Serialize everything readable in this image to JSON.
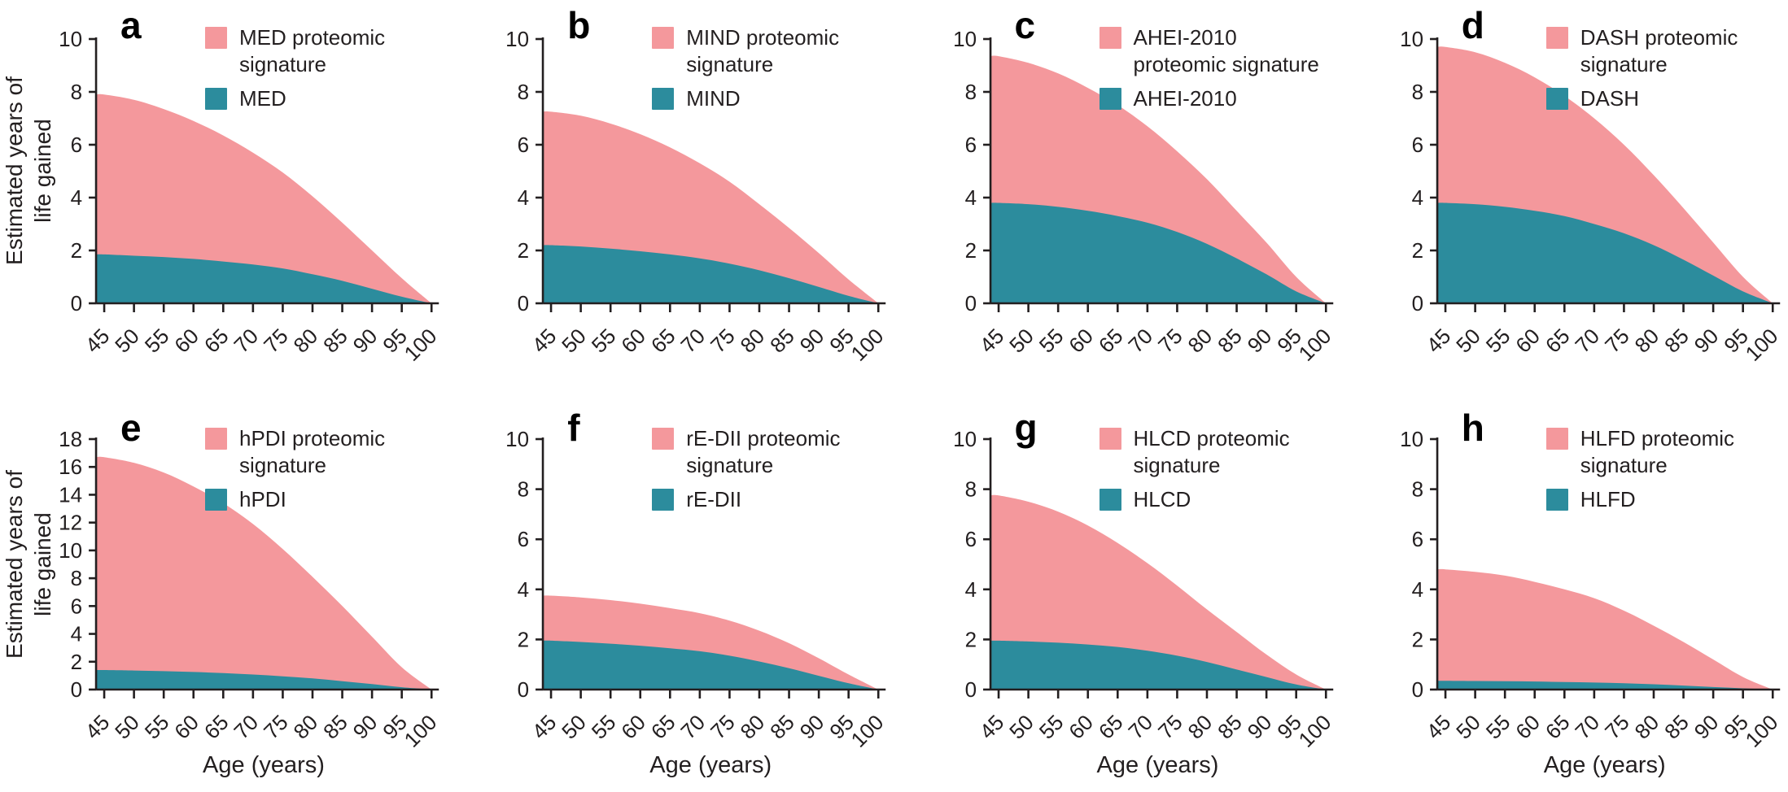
{
  "figure_name": "estimated-years-of-life-gained-by-diet",
  "chart_data": {
    "type": "area",
    "x_axis_label": "Age (years)",
    "y_axis_label_lines": [
      "Estimated years of",
      "life gained"
    ],
    "x": [
      45,
      50,
      55,
      60,
      65,
      70,
      75,
      80,
      85,
      90,
      95,
      100
    ],
    "x_tick_labels": [
      "45",
      "50",
      "55",
      "60",
      "65",
      "70",
      "75",
      "80",
      "85",
      "90",
      "95",
      "100"
    ],
    "grid": false,
    "legend_position": "top-right",
    "colors": {
      "signature": "#F4989C",
      "diet": "#2C8C9D",
      "axis": "#231F20",
      "background": "#FFFFFF"
    },
    "panels": [
      {
        "letter": "a",
        "show_ylabel": true,
        "show_xlabel": false,
        "ylim": [
          0,
          10
        ],
        "yticks": [
          0,
          2,
          4,
          6,
          8,
          10
        ],
        "legend": [
          {
            "lines": [
              "MED proteomic",
              "signature"
            ],
            "color_key": "signature"
          },
          {
            "lines": [
              "MED"
            ],
            "color_key": "diet"
          }
        ],
        "series": [
          {
            "name": "MED proteomic signature",
            "color_key": "signature",
            "values": [
              7.9,
              7.7,
              7.35,
              6.9,
              6.35,
              5.7,
              4.95,
              4.05,
              3.05,
              2.0,
              0.95,
              0
            ]
          },
          {
            "name": "MED",
            "color_key": "diet",
            "values": [
              1.85,
              1.8,
              1.75,
              1.68,
              1.58,
              1.47,
              1.32,
              1.1,
              0.85,
              0.55,
              0.25,
              0
            ]
          }
        ]
      },
      {
        "letter": "b",
        "show_ylabel": false,
        "show_xlabel": false,
        "ylim": [
          0,
          10
        ],
        "yticks": [
          0,
          2,
          4,
          6,
          8,
          10
        ],
        "legend": [
          {
            "lines": [
              "MIND proteomic",
              "signature"
            ],
            "color_key": "signature"
          },
          {
            "lines": [
              "MIND"
            ],
            "color_key": "diet"
          }
        ],
        "series": [
          {
            "name": "MIND proteomic signature",
            "color_key": "signature",
            "values": [
              7.25,
              7.1,
              6.8,
              6.4,
              5.9,
              5.3,
              4.6,
              3.75,
              2.85,
              1.9,
              0.9,
              0
            ]
          },
          {
            "name": "MIND",
            "color_key": "diet",
            "values": [
              2.2,
              2.15,
              2.07,
              1.97,
              1.85,
              1.7,
              1.5,
              1.25,
              0.95,
              0.62,
              0.28,
              0
            ]
          }
        ]
      },
      {
        "letter": "c",
        "show_ylabel": false,
        "show_xlabel": false,
        "ylim": [
          0,
          10
        ],
        "yticks": [
          0,
          2,
          4,
          6,
          8,
          10
        ],
        "legend": [
          {
            "lines": [
              "AHEI-2010",
              "proteomic signature"
            ],
            "color_key": "signature"
          },
          {
            "lines": [
              "AHEI-2010"
            ],
            "color_key": "diet"
          }
        ],
        "series": [
          {
            "name": "AHEI-2010 proteomic signature",
            "color_key": "signature",
            "values": [
              9.35,
              9.1,
              8.7,
              8.15,
              7.5,
              6.7,
              5.75,
              4.7,
              3.5,
              2.3,
              1.0,
              0
            ]
          },
          {
            "name": "AHEI-2010",
            "color_key": "diet",
            "values": [
              3.8,
              3.75,
              3.65,
              3.5,
              3.3,
              3.05,
              2.7,
              2.25,
              1.7,
              1.1,
              0.45,
              0
            ]
          }
        ]
      },
      {
        "letter": "d",
        "show_ylabel": false,
        "show_xlabel": false,
        "ylim": [
          0,
          10
        ],
        "yticks": [
          0,
          2,
          4,
          6,
          8,
          10
        ],
        "legend": [
          {
            "lines": [
              "DASH proteomic",
              "signature"
            ],
            "color_key": "signature"
          },
          {
            "lines": [
              "DASH"
            ],
            "color_key": "diet"
          }
        ],
        "series": [
          {
            "name": "DASH proteomic signature",
            "color_key": "signature",
            "values": [
              9.7,
              9.5,
              9.1,
              8.55,
              7.85,
              7.0,
              6.0,
              4.85,
              3.6,
              2.3,
              1.0,
              0
            ]
          },
          {
            "name": "DASH",
            "color_key": "diet",
            "values": [
              3.8,
              3.75,
              3.65,
              3.5,
              3.3,
              3.0,
              2.65,
              2.2,
              1.65,
              1.05,
              0.45,
              0
            ]
          }
        ]
      },
      {
        "letter": "e",
        "show_ylabel": true,
        "show_xlabel": true,
        "ylim": [
          0,
          18
        ],
        "yticks": [
          0,
          2,
          4,
          6,
          8,
          10,
          12,
          14,
          16,
          18
        ],
        "legend": [
          {
            "lines": [
              "hPDI proteomic",
              "signature"
            ],
            "color_key": "signature"
          },
          {
            "lines": [
              "hPDI"
            ],
            "color_key": "diet"
          }
        ],
        "series": [
          {
            "name": "hPDI proteomic signature",
            "color_key": "signature",
            "values": [
              16.7,
              16.3,
              15.6,
              14.6,
              13.4,
              11.9,
              10.1,
              8.1,
              6.0,
              3.8,
              1.6,
              0
            ]
          },
          {
            "name": "hPDI",
            "color_key": "diet",
            "values": [
              1.4,
              1.37,
              1.32,
              1.26,
              1.18,
              1.08,
              0.95,
              0.8,
              0.6,
              0.4,
              0.17,
              0
            ]
          }
        ]
      },
      {
        "letter": "f",
        "show_ylabel": false,
        "show_xlabel": true,
        "ylim": [
          0,
          10
        ],
        "yticks": [
          0,
          2,
          4,
          6,
          8,
          10
        ],
        "legend": [
          {
            "lines": [
              "rE-DII proteomic",
              "signature"
            ],
            "color_key": "signature"
          },
          {
            "lines": [
              "rE-DII"
            ],
            "color_key": "diet"
          }
        ],
        "series": [
          {
            "name": "rE-DII proteomic signature",
            "color_key": "signature",
            "values": [
              3.75,
              3.68,
              3.57,
              3.43,
              3.25,
              3.05,
              2.75,
              2.35,
              1.85,
              1.25,
              0.6,
              0
            ]
          },
          {
            "name": "rE-DII",
            "color_key": "diet",
            "values": [
              1.95,
              1.9,
              1.83,
              1.75,
              1.65,
              1.53,
              1.35,
              1.12,
              0.85,
              0.55,
              0.25,
              0
            ]
          }
        ]
      },
      {
        "letter": "g",
        "show_ylabel": false,
        "show_xlabel": true,
        "ylim": [
          0,
          10
        ],
        "yticks": [
          0,
          2,
          4,
          6,
          8,
          10
        ],
        "legend": [
          {
            "lines": [
              "HLCD proteomic",
              "signature"
            ],
            "color_key": "signature"
          },
          {
            "lines": [
              "HLCD"
            ],
            "color_key": "diet"
          }
        ],
        "series": [
          {
            "name": "HLCD proteomic signature",
            "color_key": "signature",
            "values": [
              7.75,
              7.5,
              7.1,
              6.55,
              5.85,
              5.05,
              4.15,
              3.2,
              2.3,
              1.4,
              0.6,
              0
            ]
          },
          {
            "name": "HLCD",
            "color_key": "diet",
            "values": [
              1.95,
              1.92,
              1.87,
              1.8,
              1.7,
              1.55,
              1.35,
              1.1,
              0.8,
              0.5,
              0.2,
              0
            ]
          }
        ]
      },
      {
        "letter": "h",
        "show_ylabel": false,
        "show_xlabel": true,
        "ylim": [
          0,
          10
        ],
        "yticks": [
          0,
          2,
          4,
          6,
          8,
          10
        ],
        "legend": [
          {
            "lines": [
              "HLFD proteomic",
              "signature"
            ],
            "color_key": "signature"
          },
          {
            "lines": [
              "HLFD"
            ],
            "color_key": "diet"
          }
        ],
        "series": [
          {
            "name": "HLFD proteomic signature",
            "color_key": "signature",
            "values": [
              4.8,
              4.7,
              4.55,
              4.3,
              4.0,
              3.65,
              3.15,
              2.55,
              1.9,
              1.2,
              0.5,
              0
            ]
          },
          {
            "name": "HLFD",
            "color_key": "diet",
            "values": [
              0.35,
              0.34,
              0.33,
              0.32,
              0.3,
              0.28,
              0.25,
              0.21,
              0.16,
              0.1,
              0.05,
              0
            ]
          }
        ]
      }
    ]
  }
}
